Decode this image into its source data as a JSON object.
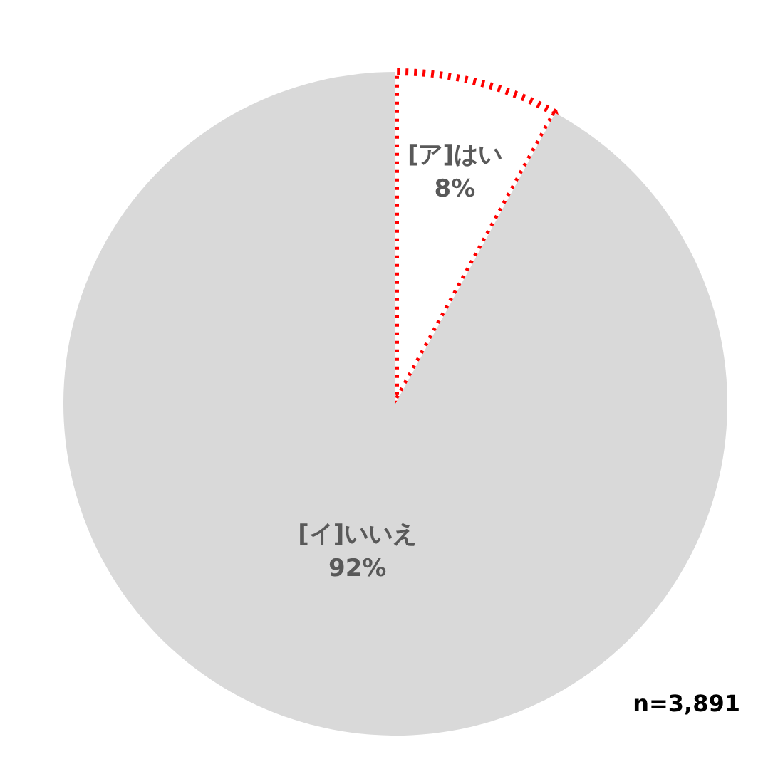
{
  "chart_data": {
    "type": "pie",
    "categories": [
      "[ア]はい",
      "[イ]いいえ"
    ],
    "values": [
      8,
      92
    ],
    "colors": [
      "#ffffff",
      "#d9d9d9"
    ],
    "value_labels": [
      "8%",
      "92%"
    ],
    "annotations": [
      "n=3,891"
    ]
  }
}
